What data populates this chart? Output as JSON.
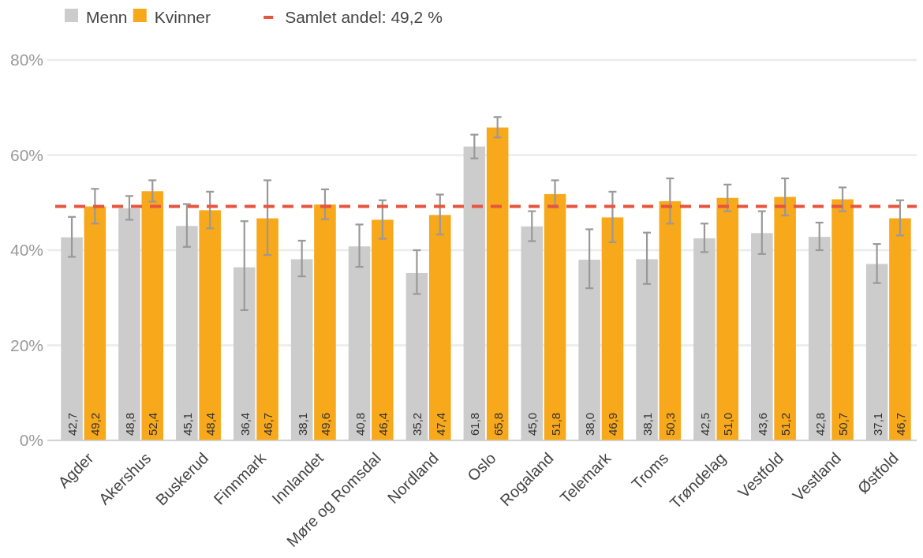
{
  "chart_data": {
    "type": "bar",
    "categories": [
      "Agder",
      "Akershus",
      "Buskerud",
      "Finnmark",
      "Innlandet",
      "Møre og Romsdal",
      "Nordland",
      "Oslo",
      "Rogaland",
      "Telemark",
      "Troms",
      "Trøndelag",
      "Vestfold",
      "Vestland",
      "Østfold"
    ],
    "series": [
      {
        "name": "Menn",
        "color": "#cccccc",
        "values": [
          42.7,
          48.8,
          45.1,
          36.4,
          38.1,
          40.8,
          35.2,
          61.8,
          45.0,
          38.0,
          38.1,
          42.5,
          43.6,
          42.8,
          37.1
        ],
        "value_labels": [
          "42,7",
          "48,8",
          "45,1",
          "36,4",
          "38,1",
          "40,8",
          "35,2",
          "61,8",
          "45,0",
          "38,0",
          "38,1",
          "42,5",
          "43,6",
          "42,8",
          "37,1"
        ],
        "errors": [
          [
            38.6,
            47.0
          ],
          [
            46.4,
            51.4
          ],
          [
            40.7,
            49.7
          ],
          [
            27.4,
            46.1
          ],
          [
            34.5,
            42.0
          ],
          [
            36.5,
            45.4
          ],
          [
            30.8,
            40.0
          ],
          [
            59.3,
            64.3
          ],
          [
            41.9,
            48.2
          ],
          [
            32.0,
            44.4
          ],
          [
            32.9,
            43.7
          ],
          [
            39.6,
            45.6
          ],
          [
            39.2,
            48.2
          ],
          [
            40.0,
            45.8
          ],
          [
            33.1,
            41.3
          ]
        ]
      },
      {
        "name": "Kvinner",
        "color": "#f7a81b",
        "values": [
          49.2,
          52.4,
          48.4,
          46.7,
          49.6,
          46.4,
          47.4,
          65.8,
          51.8,
          46.9,
          50.3,
          51.0,
          51.2,
          50.7,
          46.7
        ],
        "value_labels": [
          "49,2",
          "52,4",
          "48,4",
          "46,7",
          "49,6",
          "46,4",
          "47,4",
          "65,8",
          "51,8",
          "46,9",
          "50,3",
          "51,0",
          "51,2",
          "50,7",
          "46,7"
        ],
        "errors": [
          [
            45.6,
            52.9
          ],
          [
            50.2,
            54.7
          ],
          [
            44.6,
            52.3
          ],
          [
            39.0,
            54.7
          ],
          [
            46.5,
            52.8
          ],
          [
            42.4,
            50.5
          ],
          [
            43.3,
            51.7
          ],
          [
            63.7,
            68.0
          ],
          [
            49.0,
            54.7
          ],
          [
            41.7,
            52.3
          ],
          [
            45.6,
            55.1
          ],
          [
            48.2,
            53.8
          ],
          [
            47.3,
            55.1
          ],
          [
            48.2,
            53.2
          ],
          [
            43.1,
            50.5
          ]
        ]
      }
    ],
    "ylim": [
      0,
      80
    ],
    "yticks": [
      {
        "value": 0,
        "label": "0%"
      },
      {
        "value": 20,
        "label": "20%"
      },
      {
        "value": 40,
        "label": "40%"
      },
      {
        "value": 60,
        "label": "60%"
      },
      {
        "value": 80,
        "label": "80%"
      }
    ],
    "grid": "y",
    "legend": "top left",
    "ref_lines": [
      {
        "axis": "y",
        "value": 49.2,
        "label": "Samlet andel: 49,2 %",
        "color": "#e8553e",
        "line_style": "dashed"
      }
    ]
  }
}
